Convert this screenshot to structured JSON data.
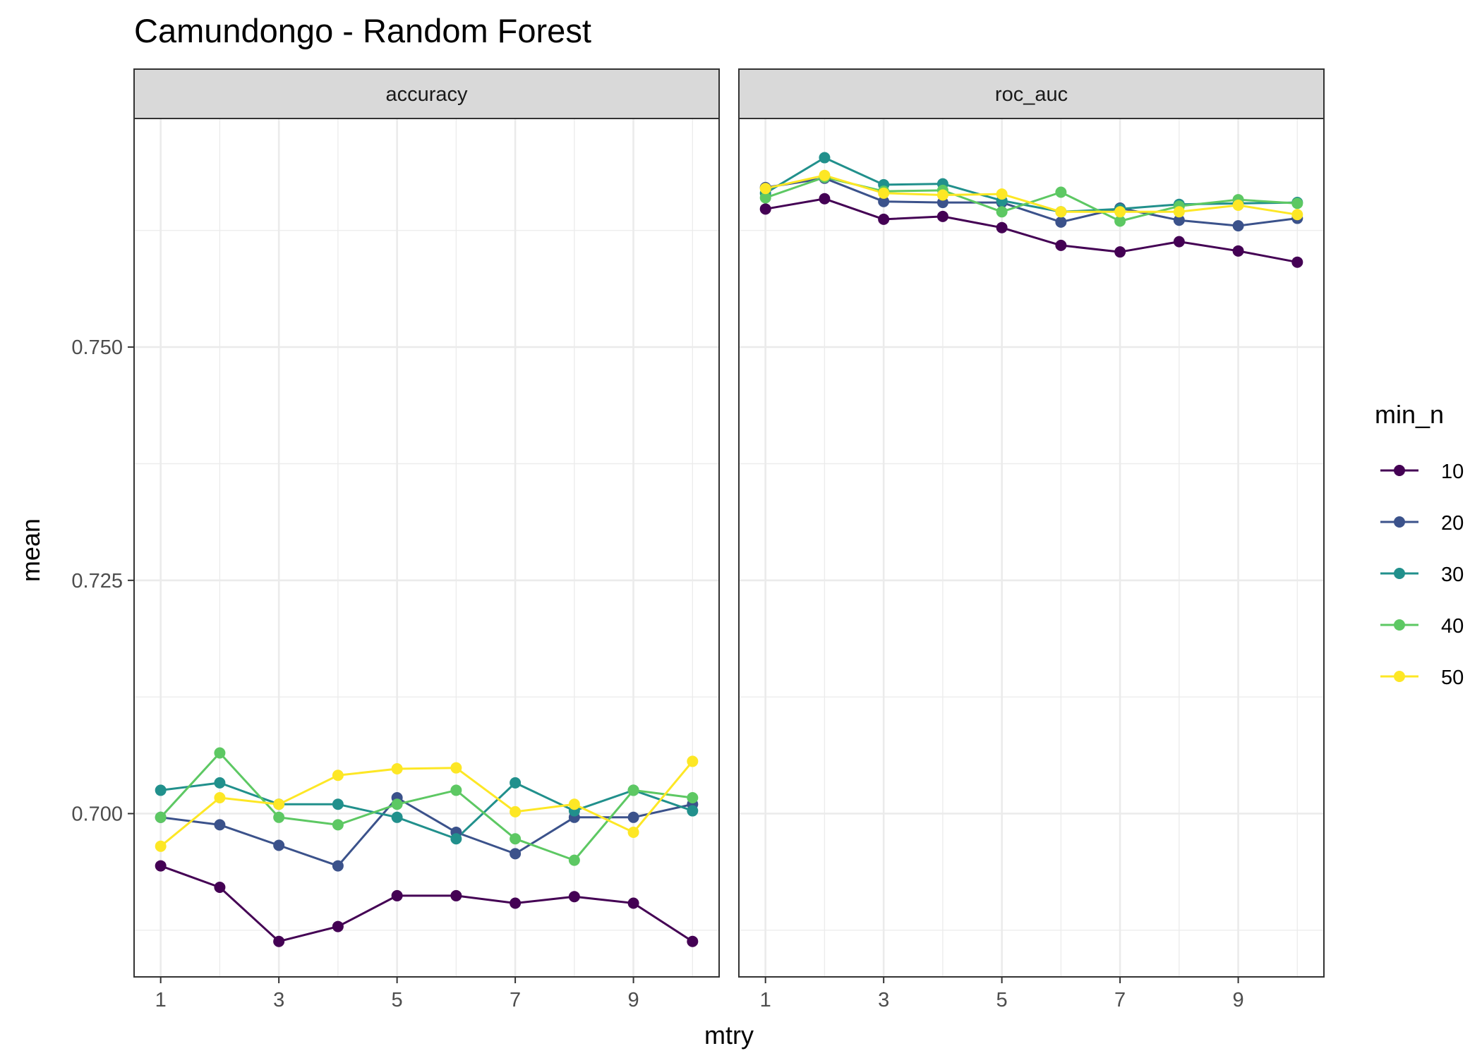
{
  "chart_data": {
    "type": "line",
    "title": "Camundongo - Random Forest",
    "xlabel": "mtry",
    "ylabel": "mean",
    "x": [
      1,
      2,
      3,
      4,
      5,
      6,
      7,
      8,
      9,
      10
    ],
    "x_ticks": [
      1,
      3,
      5,
      7,
      9
    ],
    "xlim": [
      0.55,
      10.45
    ],
    "y_ticks": [
      0.7,
      0.725,
      0.75
    ],
    "y_tick_labels": [
      "0.700",
      "0.725",
      "0.750"
    ],
    "ylim": [
      0.6825,
      0.7745
    ],
    "grid": true,
    "legend": {
      "title": "min_n",
      "position": "right"
    },
    "facets": [
      {
        "label": "accuracy",
        "series": [
          {
            "name": "10",
            "color": "#440154",
            "values": [
              0.6944,
              0.6921,
              0.6863,
              0.6879,
              0.6912,
              0.6912,
              0.6904,
              0.6911,
              0.6904,
              0.6863
            ]
          },
          {
            "name": "20",
            "color": "#3B528B",
            "values": [
              0.6996,
              0.6988,
              0.6966,
              0.6944,
              0.7017,
              0.698,
              0.6957,
              0.6996,
              0.6996,
              0.701
            ]
          },
          {
            "name": "30",
            "color": "#21908C",
            "values": [
              0.7025,
              0.7033,
              0.701,
              0.701,
              0.6996,
              0.6973,
              0.7033,
              0.7003,
              0.7025,
              0.7003
            ]
          },
          {
            "name": "40",
            "color": "#5DC863",
            "values": [
              0.6996,
              0.7065,
              0.6996,
              0.6988,
              0.701,
              0.7025,
              0.6973,
              0.695,
              0.7025,
              0.7017
            ]
          },
          {
            "name": "50",
            "color": "#FDE725",
            "values": [
              0.6965,
              0.7017,
              0.701,
              0.7041,
              0.7048,
              0.7049,
              0.7002,
              0.701,
              0.698,
              0.7056
            ]
          }
        ]
      },
      {
        "label": "roc_auc",
        "series": [
          {
            "name": "10",
            "color": "#440154",
            "values": [
              0.7648,
              0.7659,
              0.7637,
              0.764,
              0.7628,
              0.7609,
              0.7602,
              0.7613,
              0.7603,
              0.7591
            ]
          },
          {
            "name": "20",
            "color": "#3B528B",
            "values": [
              0.7671,
              0.7681,
              0.7656,
              0.7655,
              0.7655,
              0.7634,
              0.7649,
              0.7636,
              0.763,
              0.7638
            ]
          },
          {
            "name": "30",
            "color": "#21908C",
            "values": [
              0.7665,
              0.7703,
              0.7674,
              0.7675,
              0.7657,
              0.7645,
              0.7648,
              0.7653,
              0.7654,
              0.7655
            ]
          },
          {
            "name": "40",
            "color": "#5DC863",
            "values": [
              0.766,
              0.7682,
              0.7667,
              0.7668,
              0.7645,
              0.7666,
              0.7635,
              0.7651,
              0.7658,
              0.7654
            ]
          },
          {
            "name": "50",
            "color": "#FDE725",
            "values": [
              0.767,
              0.7684,
              0.7665,
              0.7663,
              0.7664,
              0.7645,
              0.7645,
              0.7645,
              0.7652,
              0.7642
            ]
          }
        ]
      }
    ]
  }
}
